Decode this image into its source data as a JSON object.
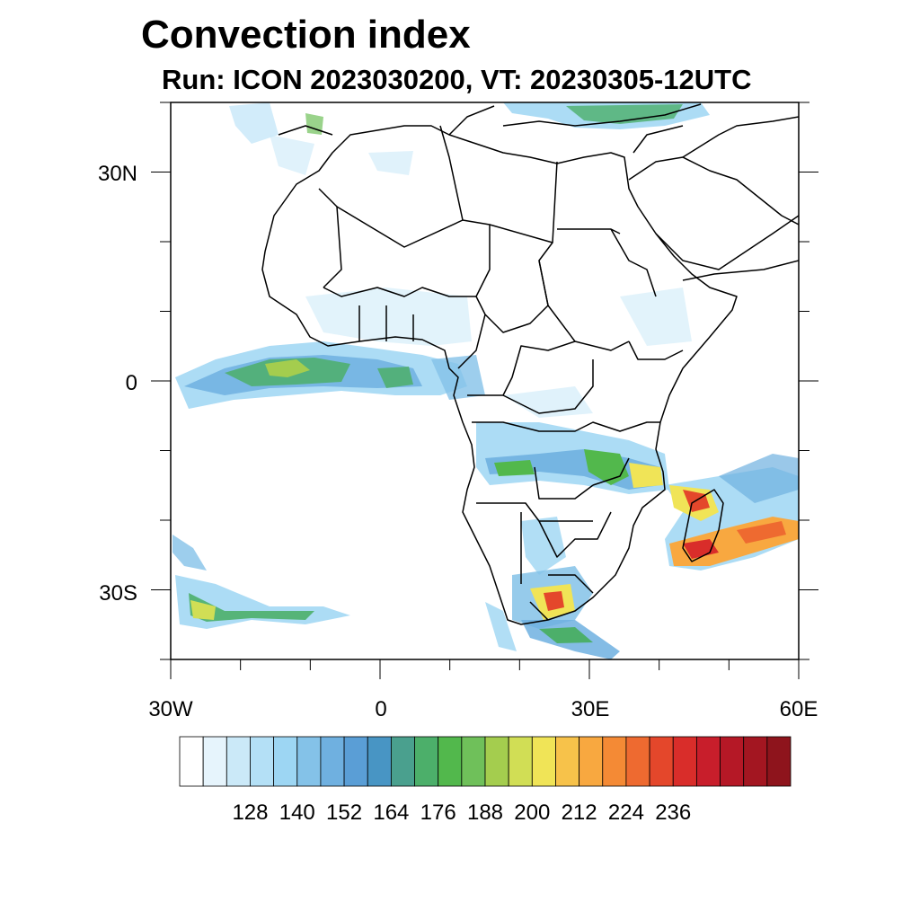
{
  "title": "Convection index",
  "subtitle": "Run: ICON 2023030200,  VT: 20230305-12UTC",
  "axes": {
    "lon_labels": [
      "30W",
      "0",
      "30E",
      "60E"
    ],
    "lat_labels": [
      "30N",
      "0",
      "30S"
    ],
    "lon_range": [
      -30,
      60
    ],
    "lat_range": [
      -40,
      40
    ]
  },
  "colorbar": {
    "labels": [
      "128",
      "140",
      "152",
      "164",
      "176",
      "188",
      "200",
      "212",
      "224",
      "236"
    ],
    "colors": [
      "#ffffff",
      "#e6f4fc",
      "#cbe9f8",
      "#b4e0f6",
      "#9dd6f3",
      "#84c2e8",
      "#6fb0e0",
      "#5a9ed6",
      "#4895c4",
      "#4aa08e",
      "#4caf6a",
      "#52b84c",
      "#6fc05a",
      "#a4cd4e",
      "#d1de55",
      "#f0e457",
      "#f7c24a",
      "#f8a840",
      "#f48a35",
      "#ee6a30",
      "#e4472b",
      "#d92d2a",
      "#c81e2b",
      "#b51826",
      "#a31621",
      "#8e141c"
    ]
  }
}
